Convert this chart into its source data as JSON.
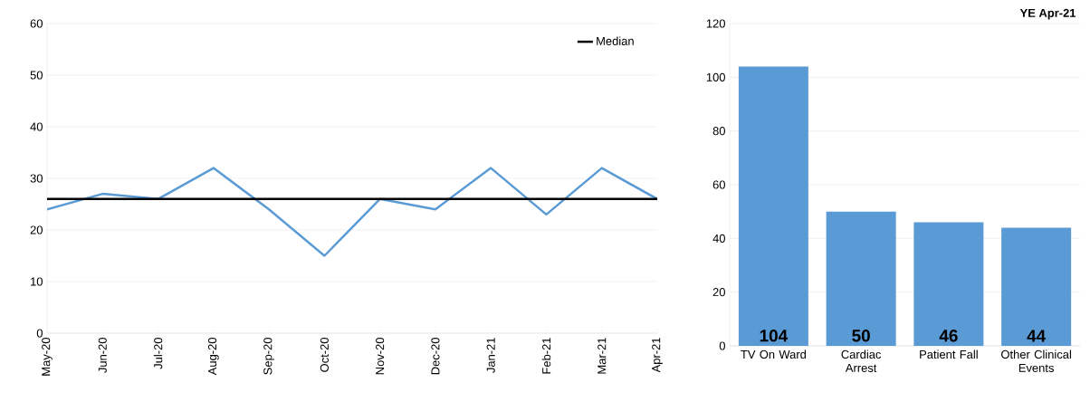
{
  "chart_data": [
    {
      "type": "line",
      "categories": [
        "May-20",
        "Jun-20",
        "Jul-20",
        "Aug-20",
        "Sep-20",
        "Oct-20",
        "Nov-20",
        "Dec-20",
        "Jan-21",
        "Feb-21",
        "Mar-21",
        "Apr-21"
      ],
      "values": [
        24,
        27,
        26,
        32,
        24,
        15,
        26,
        24,
        32,
        23,
        32,
        26
      ],
      "color": "#5b9bd5",
      "ylim": [
        0,
        60
      ],
      "yticks": [
        0,
        10,
        20,
        30,
        40,
        50,
        60
      ],
      "grid": "y",
      "legend": "top right",
      "ref_lines": [
        {
          "axis": "y",
          "value": 26,
          "label": "Median",
          "color": "#000000"
        }
      ]
    },
    {
      "type": "bar",
      "title": "YE Apr-21",
      "categories": [
        "TV  On Ward",
        "Cardiac Arrest",
        "Patient Fall",
        "Other Clinical Events"
      ],
      "values": [
        104,
        50,
        46,
        44
      ],
      "color": "#5b9bd5",
      "ylim": [
        0,
        120
      ],
      "yticks": [
        0,
        20,
        40,
        60,
        80,
        100,
        120
      ],
      "grid": "y",
      "data_labels": true
    }
  ]
}
